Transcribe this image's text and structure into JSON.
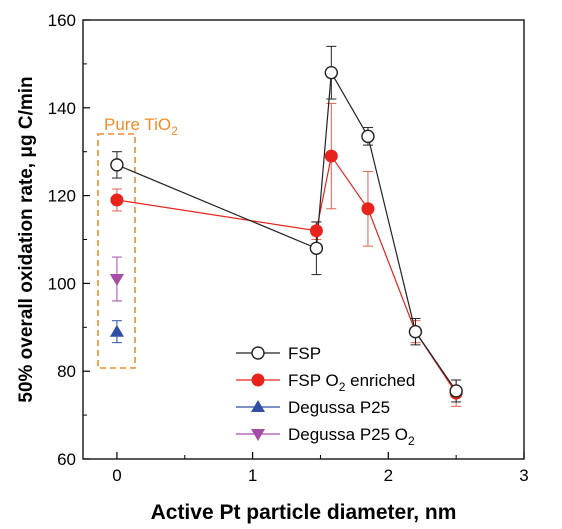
{
  "chart_data": {
    "type": "line",
    "xlabel": "Active Pt particle diameter, nm",
    "ylabel": "50% overall oxidation rate, μg C/min",
    "xlim": [
      -0.25,
      3
    ],
    "ylim": [
      60,
      160
    ],
    "xticks": [
      0,
      1,
      2,
      3
    ],
    "yticks": [
      60,
      80,
      100,
      120,
      140,
      160
    ],
    "annotation": {
      "text": "Pure TiO",
      "subscript": "2",
      "color": "#f28c28"
    },
    "legend_position": "bottom-right",
    "series": [
      {
        "name": "FSP",
        "legend_sub": "",
        "marker": "circle-open",
        "color": "#222222",
        "connected": true,
        "points": [
          {
            "x": 0,
            "y": 127,
            "err": 3
          },
          {
            "x": 1.47,
            "y": 108,
            "err": 6
          },
          {
            "x": 1.58,
            "y": 148,
            "err": 6
          },
          {
            "x": 1.85,
            "y": 133.5,
            "err": 2
          },
          {
            "x": 2.2,
            "y": 89,
            "err": 3
          },
          {
            "x": 2.5,
            "y": 75.5,
            "err": 2.5
          }
        ]
      },
      {
        "name": "FSP O",
        "legend_sub": "2",
        "legend_suffix": " enriched",
        "marker": "circle-filled",
        "color": "#e8231c",
        "connected": true,
        "points": [
          {
            "x": 0,
            "y": 119,
            "err": 2.5
          },
          {
            "x": 1.47,
            "y": 112,
            "err": 2
          },
          {
            "x": 1.58,
            "y": 129,
            "err": 12
          },
          {
            "x": 1.85,
            "y": 117,
            "err": 8.5
          },
          {
            "x": 2.2,
            "y": 89,
            "err": 2.5
          },
          {
            "x": 2.5,
            "y": 75,
            "err": 3
          }
        ]
      },
      {
        "name": "Degussa P25",
        "legend_sub": "",
        "marker": "triangle-up",
        "color": "#2e4fa3",
        "connected": false,
        "points": [
          {
            "x": 0,
            "y": 89,
            "err": 2.5
          }
        ]
      },
      {
        "name": "Degussa P25 O",
        "legend_sub": "2",
        "marker": "triangle-down",
        "color": "#a64ca6",
        "connected": false,
        "points": [
          {
            "x": 0,
            "y": 101,
            "err": 5
          }
        ]
      }
    ]
  }
}
